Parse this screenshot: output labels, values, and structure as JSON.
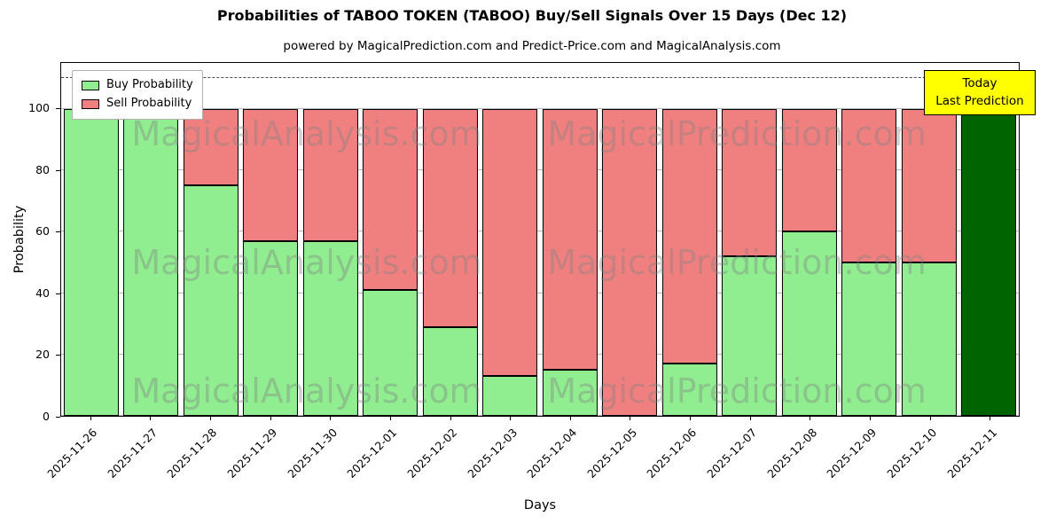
{
  "title": "Probabilities of TABOO TOKEN (TABOO) Buy/Sell Signals Over 15 Days (Dec 12)",
  "subtitle": "powered by MagicalPrediction.com and Predict-Price.com and MagicalAnalysis.com",
  "annotation": {
    "line1": "Today",
    "line2": "Last Prediction"
  },
  "legend": {
    "items": [
      {
        "label": "Buy Probability",
        "color": "#90ee90"
      },
      {
        "label": "Sell Probability",
        "color": "#f08080"
      }
    ]
  },
  "watermarks": {
    "left": "MagicalAnalysis.com",
    "right": "MagicalPrediction.com"
  },
  "chart_data": {
    "type": "bar",
    "stacked": true,
    "title": "Probabilities of TABOO TOKEN (TABOO) Buy/Sell Signals Over 15 Days (Dec 12)",
    "xlabel": "Days",
    "ylabel": "Probability",
    "categories": [
      "2025-11-26",
      "2025-11-27",
      "2025-11-28",
      "2025-11-29",
      "2025-11-30",
      "2025-12-01",
      "2025-12-02",
      "2025-12-03",
      "2025-12-04",
      "2025-12-05",
      "2025-12-06",
      "2025-12-07",
      "2025-12-08",
      "2025-12-09",
      "2025-12-10",
      "2025-12-11"
    ],
    "series": [
      {
        "name": "Buy Probability",
        "color": "#90ee90",
        "values": [
          100,
          100,
          75,
          57,
          57,
          41,
          29,
          13,
          15,
          0,
          17,
          52,
          60,
          50,
          50,
          100
        ]
      },
      {
        "name": "Sell Probability",
        "color": "#f08080",
        "values": [
          0,
          0,
          25,
          43,
          43,
          59,
          71,
          87,
          85,
          100,
          83,
          48,
          40,
          50,
          50,
          0
        ]
      }
    ],
    "final_bar_color": "#006400",
    "yticks": [
      0,
      20,
      40,
      60,
      80,
      100
    ],
    "ylim": [
      0,
      115
    ],
    "threshold_line_y": 110,
    "grid": true,
    "legend_position": "upper left"
  }
}
